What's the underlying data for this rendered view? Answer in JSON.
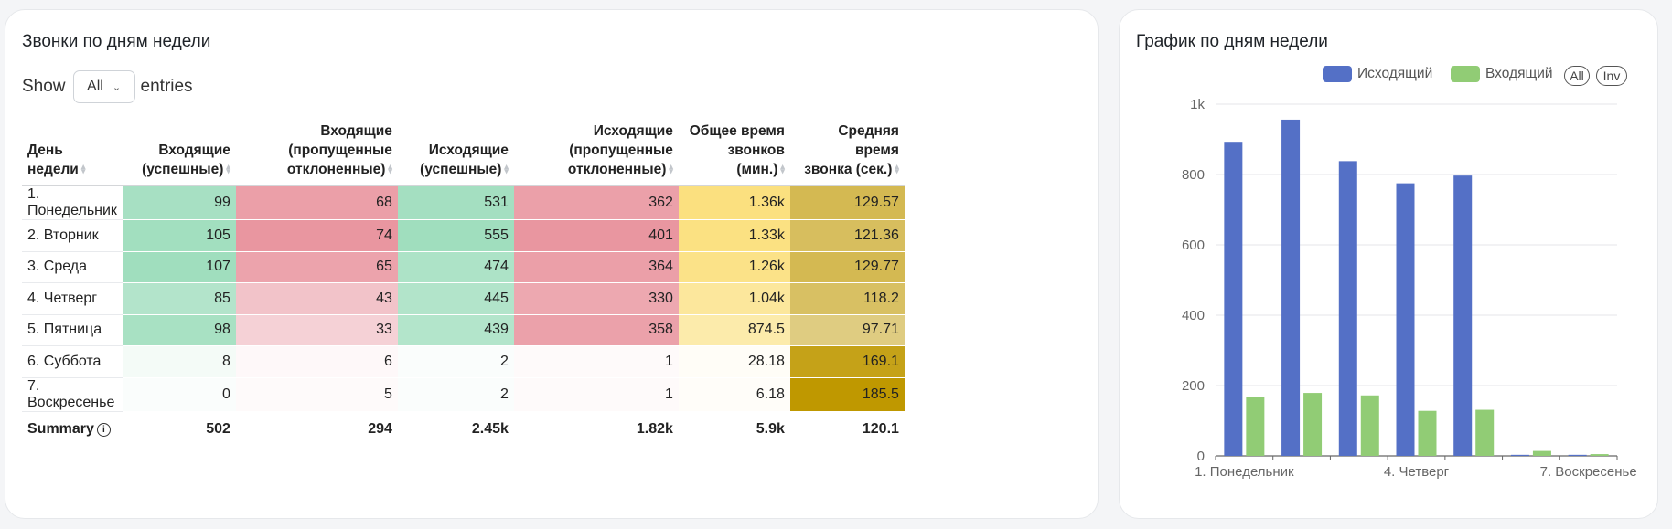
{
  "table_card": {
    "title": "Звонки по дням недели",
    "show_label": "Show",
    "entries_select": "All",
    "entries_label": "entries",
    "columns": [
      [
        "День недели"
      ],
      [
        "Входящие",
        "(успешные)"
      ],
      [
        "Входящие",
        "(пропущенные",
        "отклоненные)"
      ],
      [
        "Исходящие",
        "(успешные)"
      ],
      [
        "Исходящие",
        "(пропущенные",
        "отклоненные)"
      ],
      [
        "Общее время",
        "звонков (мин.)"
      ],
      [
        "Средняя время",
        "звонка (сек.)"
      ]
    ],
    "rows": [
      [
        "1. Понедельник",
        "99",
        "68",
        "531",
        "362",
        "1.36k",
        "129.57"
      ],
      [
        "2. Вторник",
        "105",
        "74",
        "555",
        "401",
        "1.33k",
        "121.36"
      ],
      [
        "3. Среда",
        "107",
        "65",
        "474",
        "364",
        "1.26k",
        "129.77"
      ],
      [
        "4. Четверг",
        "85",
        "43",
        "445",
        "330",
        "1.04k",
        "118.2"
      ],
      [
        "5. Пятница",
        "98",
        "33",
        "439",
        "358",
        "874.5",
        "97.71"
      ],
      [
        "6. Суббота",
        "8",
        "6",
        "2",
        "1",
        "28.18",
        "169.1"
      ],
      [
        "7. Воскресенье",
        "0",
        "5",
        "2",
        "1",
        "6.18",
        "185.5"
      ]
    ],
    "summary": [
      "Summary",
      "502",
      "294",
      "2.45k",
      "1.82k",
      "5.9k",
      "120.1"
    ],
    "heat_colors": {
      "green": "#a8e0c1",
      "red": "#ec9ea7",
      "yellow": "#fbe184",
      "gold": "#c09a10"
    }
  },
  "chart_card": {
    "title": "График по дням недели",
    "legend": [
      {
        "name": "Исходящий",
        "color": "#5470c6"
      },
      {
        "name": "Входящий",
        "color": "#91cc75"
      }
    ],
    "buttons": [
      "All",
      "Inv"
    ]
  },
  "chart_data": {
    "type": "bar",
    "title": "График по дням недели",
    "categories": [
      "1. Понедельник",
      "2. Вторник",
      "3. Среда",
      "4. Четверг",
      "5. Пятница",
      "6. Суббота",
      "7. Воскресенье"
    ],
    "x_tick_labels": [
      "1. Понедельник",
      "4. Четверг",
      "7. Воскресенье"
    ],
    "series": [
      {
        "name": "Исходящий",
        "color": "#5470c6",
        "values": [
          893,
          956,
          838,
          775,
          797,
          3,
          3
        ]
      },
      {
        "name": "Входящий",
        "color": "#91cc75",
        "values": [
          167,
          179,
          172,
          128,
          131,
          14,
          5
        ]
      }
    ],
    "ylim": [
      0,
      1000
    ],
    "y_ticks": [
      0,
      200,
      400,
      600,
      800,
      1000
    ],
    "y_tick_labels": [
      "0",
      "200",
      "400",
      "600",
      "800",
      "1k"
    ],
    "grid": true,
    "legend_position": "top-right"
  }
}
